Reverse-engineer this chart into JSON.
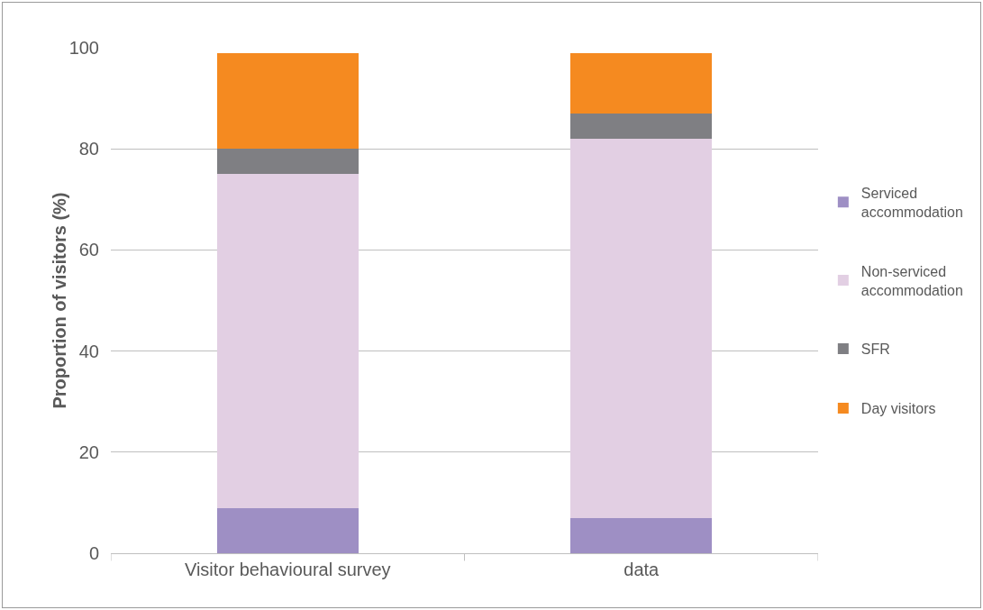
{
  "chart_data": {
    "type": "bar",
    "stacked": true,
    "ylabel": "Proportion of visitors (%)",
    "categories": [
      "Visitor behavioural survey",
      "data"
    ],
    "series": [
      {
        "name": "Serviced accommodation",
        "color": "#9e8fc4",
        "values": [
          9,
          7
        ]
      },
      {
        "name": "Non-serviced accommodation",
        "color": "#e2cfe3",
        "values": [
          66,
          75
        ]
      },
      {
        "name": "SFR",
        "color": "#7f7f83",
        "values": [
          5,
          5
        ]
      },
      {
        "name": "Day visitors",
        "color": "#f58a20",
        "values": [
          19,
          12
        ]
      }
    ],
    "ylim": [
      0,
      100
    ],
    "yticks": [
      0,
      20,
      40,
      60,
      80,
      100
    ],
    "grid": "y",
    "legend": "right"
  }
}
